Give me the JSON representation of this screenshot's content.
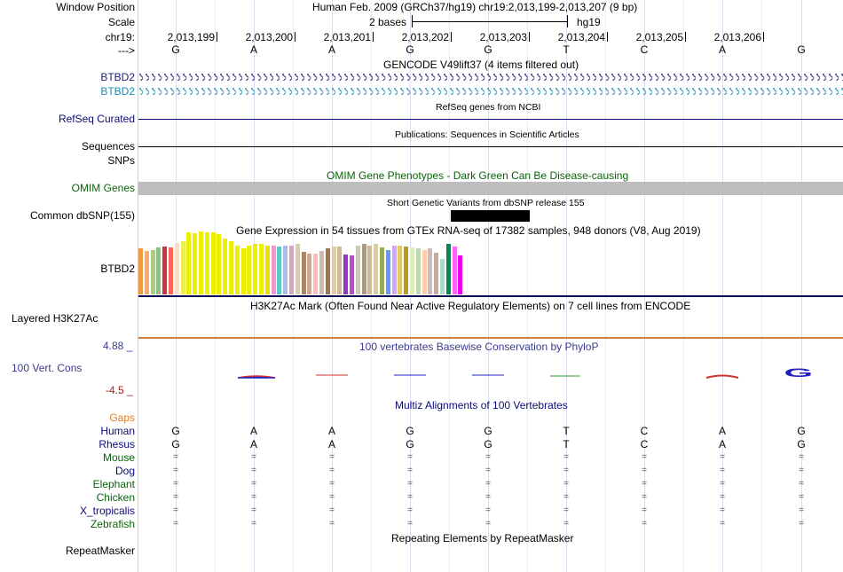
{
  "header": {
    "window_position_label": "Window Position",
    "window_position_value": "Human Feb. 2009 (GRCh37/hg19)   chr19:2,013,199-2,013,207 (9 bp)",
    "scale_label": "Scale",
    "scale_value": "2 bases",
    "scale_assembly": "hg19",
    "chrom_label": "chr19:",
    "strand_label": "--->",
    "positions": [
      "2,013,199",
      "2,013,200",
      "2,013,201",
      "2,013,202",
      "2,013,203",
      "2,013,204",
      "2,013,205",
      "2,013,206"
    ],
    "bases": [
      "G",
      "A",
      "A",
      "G",
      "G",
      "T",
      "C",
      "A",
      "G"
    ]
  },
  "tracks": {
    "gencode_title": "GENCODE V49lift37 (4 items filtered out)",
    "gencode_items": [
      "BTBD2",
      "BTBD2"
    ],
    "refseq_label": "RefSeq Curated",
    "refseq_title": "RefSeq genes from NCBI",
    "pubs_label": "Sequences",
    "pubs_title": "Publications: Sequences in Scientific Articles",
    "snps_label": "SNPs",
    "omim_label": "OMIM Genes",
    "omim_title": "OMIM Gene Phenotypes - Dark Green Can Be Disease-causing",
    "dbsnp_label": "Common dbSNP(155)",
    "dbsnp_title": "Short Genetic Variants from dbSNP release 155",
    "gtex_title": "Gene Expression in 54 tissues from GTEx RNA-seq of 17382 samples, 948 donors (V8, Aug 2019)",
    "gtex_label": "BTBD2",
    "gtex_values": [
      0.62,
      0.58,
      0.6,
      0.63,
      0.64,
      0.63,
      0.69,
      0.71,
      0.83,
      0.82,
      0.84,
      0.83,
      0.83,
      0.81,
      0.75,
      0.72,
      0.65,
      0.62,
      0.65,
      0.68,
      0.68,
      0.66,
      0.66,
      0.64,
      0.65,
      0.66,
      0.68,
      0.57,
      0.55,
      0.55,
      0.58,
      0.62,
      0.64,
      0.64,
      0.53,
      0.52,
      0.65,
      0.68,
      0.66,
      0.68,
      0.63,
      0.6,
      0.65,
      0.65,
      0.64,
      0.63,
      0.62,
      0.6,
      0.62,
      0.56,
      0.48,
      0.68,
      0.64,
      0.52
    ],
    "gtex_colors": [
      "#ee9944",
      "#ffaa66",
      "#aacc88",
      "#99bb88",
      "#cc3344",
      "#ff6655",
      "#ffddbb",
      "#eeee55",
      "#eeee00",
      "#eeee00",
      "#eeee00",
      "#eeee00",
      "#eeee00",
      "#eeee00",
      "#eeee00",
      "#eeee00",
      "#eeee00",
      "#eeee00",
      "#eeee00",
      "#eeee00",
      "#eeee00",
      "#eedd00",
      "#ee99cc",
      "#55cccc",
      "#aabbee",
      "#ccaabb",
      "#ddccaa",
      "#aa8866",
      "#ccaa99",
      "#ffbbbb",
      "#ccbbaa",
      "#997755",
      "#ddccaa",
      "#ccbb99",
      "#9933cc",
      "#aa55bb",
      "#ccccaa",
      "#aa9988",
      "#ccbb99",
      "#ddcc99",
      "#99aa55",
      "#6699ff",
      "#ccaaee",
      "#ddcc66",
      "#bb9922",
      "#ddeebb",
      "#bbddaa",
      "#ffccaa",
      "#ccbbbb",
      "#ccaa99",
      "#aaddcc",
      "#008855",
      "#ff66ff",
      "#ee00ee"
    ],
    "h3k27ac_label": "Layered H3K27Ac",
    "h3k27ac_title": "H3K27Ac Mark (Often Found Near Active Regulatory Elements) on 7 cell lines from ENCODE",
    "phylop_title": "100 vertebrates Basewise Conservation by PhyloP",
    "phylop_label": "100 Vert. Cons",
    "phylop_max": "4.88 _",
    "phylop_min": "-4.5 _",
    "phylop_big_base": "G",
    "multiz_title": "Multiz Alignments of 100 Vertebrates",
    "gaps_label": "Gaps",
    "species": [
      {
        "name": "Human",
        "row": [
          "G",
          "A",
          "A",
          "G",
          "G",
          "T",
          "C",
          "A",
          "G"
        ]
      },
      {
        "name": "Rhesus",
        "row": [
          "G",
          "A",
          "A",
          "G",
          "G",
          "T",
          "C",
          "A",
          "G"
        ]
      },
      {
        "name": "Mouse",
        "row": [
          "=",
          "=",
          "=",
          "=",
          "=",
          "=",
          "=",
          "=",
          "="
        ]
      },
      {
        "name": "Dog",
        "row": [
          "=",
          "=",
          "=",
          "=",
          "=",
          "=",
          "=",
          "=",
          "="
        ]
      },
      {
        "name": "Elephant",
        "row": [
          "=",
          "=",
          "=",
          "=",
          "=",
          "=",
          "=",
          "=",
          "="
        ]
      },
      {
        "name": "Chicken",
        "row": [
          "=",
          "=",
          "=",
          "=",
          "=",
          "=",
          "=",
          "=",
          "="
        ]
      },
      {
        "name": "X_tropicalis",
        "row": [
          "=",
          "=",
          "=",
          "=",
          "=",
          "=",
          "=",
          "=",
          "="
        ]
      },
      {
        "name": "Zebrafish",
        "row": [
          "=",
          "=",
          "=",
          "=",
          "=",
          "=",
          "=",
          "=",
          "="
        ]
      }
    ],
    "rmsk_title": "Repeating Elements by RepeatMasker",
    "rmsk_label": "RepeatMasker"
  },
  "colors": {
    "gencode": "#22227a",
    "gencode2": "#1a8cb4",
    "refseq": "#0c0c78",
    "omim": "#0a640a",
    "phylop": "#3c3c96",
    "multiz": "#0a0a7a",
    "gaps": "#e08020",
    "species_green": "#0a640a",
    "species_blue": "#0a0a7a"
  }
}
